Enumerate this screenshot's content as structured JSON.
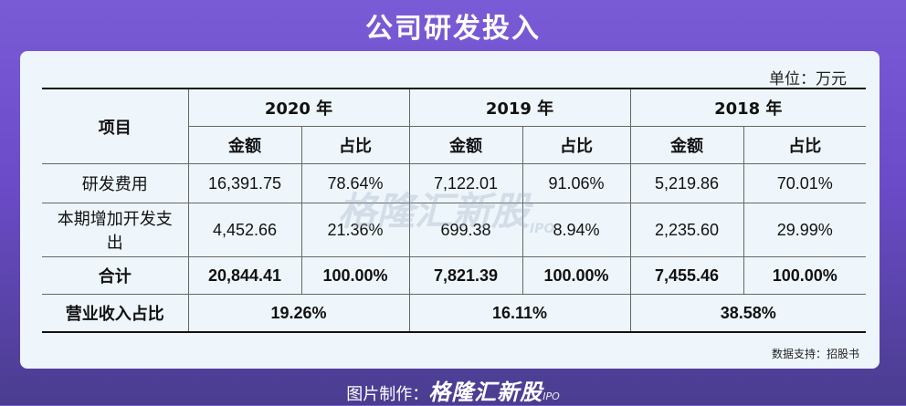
{
  "title": "公司研发投入",
  "unit": "单位：万元",
  "table": {
    "item_header": "项目",
    "years": [
      "2020 年",
      "2019 年",
      "2018 年"
    ],
    "sub_headers": [
      "金额",
      "占比"
    ],
    "rows": [
      {
        "label": "研发费用",
        "cells": [
          "16,391.75",
          "78.64%",
          "7,122.01",
          "91.06%",
          "5,219.86",
          "70.01%"
        ]
      },
      {
        "label": "本期增加开发支出",
        "cells": [
          "4,452.66",
          "21.36%",
          "699.38",
          "8.94%",
          "2,235.60",
          "29.99%"
        ]
      },
      {
        "label": "合计",
        "cells": [
          "20,844.41",
          "100.00%",
          "7,821.39",
          "100.00%",
          "7,455.46",
          "100.00%"
        ]
      }
    ],
    "revenue_row": {
      "label": "营业收入占比",
      "cells": [
        "19.26%",
        "16.11%",
        "38.58%"
      ]
    }
  },
  "watermark": {
    "text": "格隆汇新股",
    "suffix": "IPO"
  },
  "source": "数据支持：招股书",
  "footer": {
    "prefix": "图片制作：",
    "brand": "格隆汇新股",
    "suffix": "IPO"
  }
}
